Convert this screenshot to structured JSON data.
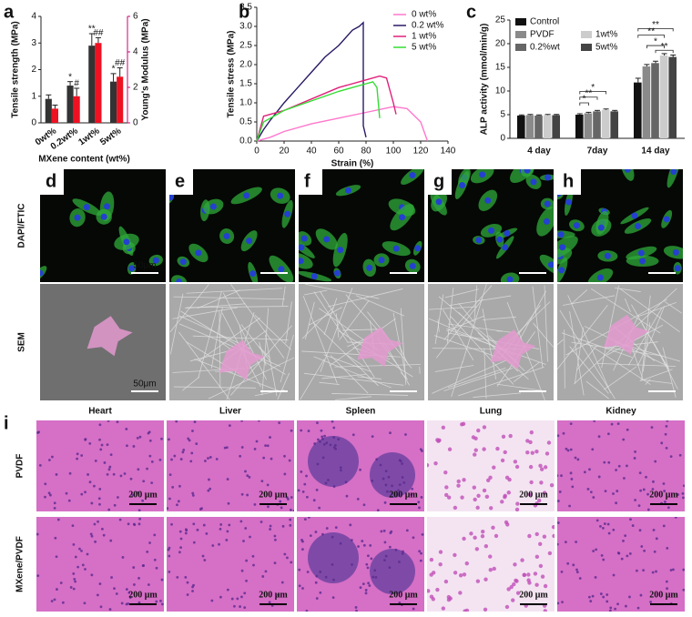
{
  "chart_data": [
    {
      "type": "bar",
      "panel": "a",
      "x_label": "MXene content (wt%)",
      "y_label": "Tensile strength (MPa)",
      "y2_label": "Young's Modulus (MPa)",
      "y2_color": "#cc0077",
      "categories": [
        "0wt%",
        "0.2wt%",
        "1wt%",
        "5wt%"
      ],
      "series": [
        {
          "color": "#333333",
          "values": [
            0.9,
            1.4,
            2.9,
            1.55
          ],
          "errors": [
            0.15,
            0.15,
            0.45,
            0.3
          ],
          "annotations": [
            null,
            "*",
            "**",
            "*"
          ]
        },
        {
          "color": "#ee1122",
          "axis": "y2",
          "values": [
            0.8,
            1.5,
            4.5,
            2.6
          ],
          "errors": [
            0.2,
            0.45,
            0.3,
            0.5
          ],
          "annotations": [
            null,
            "#",
            "##",
            "##"
          ]
        }
      ],
      "ylim": [
        0,
        4
      ],
      "yticks": [
        0,
        1,
        2,
        3,
        4
      ],
      "y2lim": [
        0,
        6
      ],
      "y2ticks": [
        0,
        2,
        4,
        6
      ]
    },
    {
      "type": "line",
      "panel": "b",
      "x_label": "Strain (%)",
      "y_label": "Tensile stress (MPa)",
      "series": [
        {
          "name": "0 wt%",
          "color": "#ff77cc",
          "x": [
            0,
            10,
            20,
            40,
            60,
            80,
            100,
            110,
            120,
            125
          ],
          "values": [
            0,
            0.1,
            0.25,
            0.45,
            0.6,
            0.75,
            0.9,
            0.85,
            0.5,
            0
          ]
        },
        {
          "name": "0.2 wt%",
          "color": "#2a1a66",
          "x": [
            0,
            5,
            10,
            20,
            30,
            40,
            50,
            60,
            70,
            75,
            78,
            78,
            80
          ],
          "values": [
            0,
            0.3,
            0.55,
            1.0,
            1.4,
            1.8,
            2.2,
            2.5,
            2.9,
            3.0,
            3.1,
            0.4,
            0.1
          ]
        },
        {
          "name": "1 wt%",
          "color": "#e0207a",
          "x": [
            0,
            5,
            10,
            20,
            40,
            60,
            80,
            90,
            95,
            100,
            102
          ],
          "values": [
            0,
            0.65,
            0.7,
            0.8,
            1.1,
            1.4,
            1.6,
            1.7,
            1.65,
            1.0,
            0.7
          ]
        },
        {
          "name": "5 wt%",
          "color": "#33dd33",
          "x": [
            0,
            5,
            10,
            20,
            40,
            60,
            80,
            85,
            88,
            90
          ],
          "values": [
            0,
            0.5,
            0.6,
            0.8,
            1.05,
            1.3,
            1.5,
            1.55,
            1.4,
            0.6
          ]
        }
      ],
      "xlim": [
        0,
        140
      ],
      "xticks": [
        0,
        20,
        40,
        60,
        80,
        100,
        120,
        140
      ],
      "ylim": [
        0,
        3.5
      ],
      "yticks": [
        {
          "value": 0,
          "label": "0.0"
        },
        0.5,
        {
          "value": 1,
          "label": "1.0"
        },
        1.5,
        {
          "value": 2,
          "label": "2.0"
        },
        2.5,
        {
          "value": 3,
          "label": "3.0"
        },
        3.5
      ]
    },
    {
      "type": "bar",
      "panel": "c",
      "y_label": "ALP activity (mmol/min/g)",
      "categories": [
        "4 day",
        "7day",
        "14 day"
      ],
      "series": [
        {
          "name": "Control",
          "color": "#111111",
          "values": [
            4.8,
            5.0,
            11.8
          ],
          "errors": [
            0.15,
            0.2,
            0.9
          ]
        },
        {
          "name": "PVDF",
          "color": "#8a8a8a",
          "values": [
            4.9,
            5.3,
            15.2
          ],
          "errors": [
            0.15,
            0.2,
            0.4
          ]
        },
        {
          "name": "0.2%wt",
          "color": "#666666",
          "values": [
            4.8,
            5.7,
            15.9
          ],
          "errors": [
            0.15,
            0.2,
            0.4
          ]
        },
        {
          "name": "1wt%",
          "color": "#cccccc",
          "values": [
            4.9,
            6.0,
            17.5
          ],
          "errors": [
            0.15,
            0.2,
            0.4
          ]
        },
        {
          "name": "5wt%",
          "color": "#444444",
          "values": [
            4.9,
            5.7,
            17.2
          ],
          "errors": [
            0.15,
            0.2,
            0.4
          ]
        }
      ],
      "annotations": [
        "*",
        "**",
        "*",
        "**",
        "**",
        "*",
        "**"
      ],
      "ylim": [
        0,
        25
      ],
      "yticks": [
        0,
        5,
        10,
        15,
        20,
        25
      ]
    }
  ],
  "cells": {
    "panels": [
      "d",
      "e",
      "f",
      "g",
      "h"
    ],
    "row_labels": [
      "DAPI/FTIC",
      "SEM"
    ],
    "scale_bar": "50μm"
  },
  "histology": {
    "panel": "i",
    "columns": [
      "Heart",
      "Liver",
      "Spleen",
      "Lung",
      "Kidney"
    ],
    "rows": [
      "PVDF",
      "MXene/PVDF"
    ],
    "scale_bar": "200 μm"
  }
}
